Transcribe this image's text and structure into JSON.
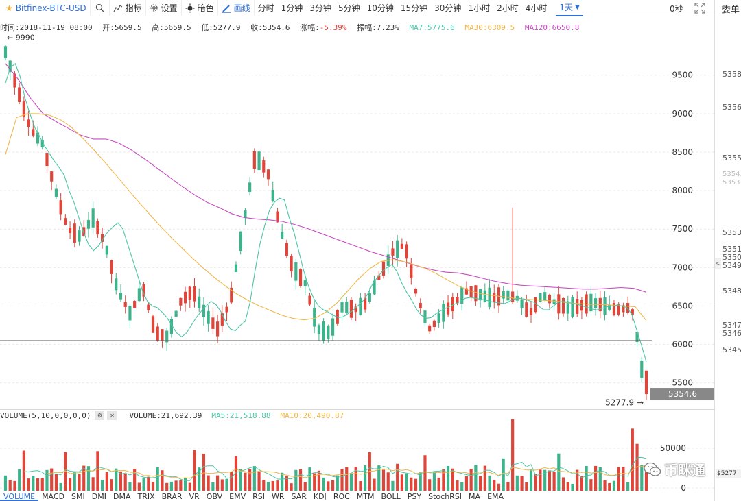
{
  "toolbar": {
    "symbol": "Bitfinex-BTC-USD",
    "indicators_label": "指标",
    "settings_label": "设置",
    "theme_label": "暗色",
    "draw_label": "画线",
    "periods": [
      "分时",
      "1分钟",
      "3分钟",
      "5分钟",
      "10分钟",
      "15分钟",
      "30分钟",
      "1小时",
      "2小时",
      "4小时"
    ],
    "active_period": "1天",
    "countdown": "0秒"
  },
  "info": {
    "time_label": "时间:2018-11-19 08:00",
    "open_label": "开:5659.5",
    "high_label": "高:5659.5",
    "low_label": "低:5277.9",
    "close_label": "收:5354.6",
    "change_label": "涨幅:",
    "change_value": "-5.39%",
    "amplitude_label": "振幅:7.23%",
    "ma7_label": "MA7:5775.6",
    "ma30_label": "MA30:6309.5",
    "ma120_label": "MA120:6650.8"
  },
  "volume_legend": {
    "title": "VOLUME(5,10,0,0,0,0)",
    "volume": "VOLUME:21,692.39",
    "ma5": "MA5:21,518.88",
    "ma10": "MA10:20,490.87"
  },
  "indicator_tabs": [
    "VOLUME",
    "MACD",
    "SMI",
    "DMI",
    "DMA",
    "TRIX",
    "BRAR",
    "VR",
    "OBV",
    "EMV",
    "RSI",
    "WR",
    "SAR",
    "KDJ",
    "ROC",
    "MTM",
    "BOLL",
    "PSY",
    "StochRSI",
    "MA",
    "EMA"
  ],
  "active_indicator": "VOLUME",
  "sidebar": {
    "title": "委单",
    "prices": [
      "5358.",
      "5356.",
      "5355.",
      "5354.",
      "5353.",
      "5353.",
      "5351.",
      "5350.",
      "5349.",
      "5348.",
      "5347.",
      "5346.",
      "5345."
    ],
    "last_price": "$5277",
    "arrow": "<"
  },
  "watermark": "币眯通",
  "colors": {
    "up": "#e0453a",
    "down": "#3cb38a",
    "ma7": "#4cc4a6",
    "ma30": "#f0b64a",
    "ma120": "#c84cc0",
    "accent": "#2e6fd8"
  },
  "chart_data": {
    "type": "candlestick",
    "title": "Bitfinex-BTC-USD",
    "period": "1天",
    "y_ticks": [
      5500,
      6000,
      6500,
      7000,
      7500,
      8000,
      8500,
      9000,
      9500
    ],
    "ylim": [
      5150,
      10050
    ],
    "max_label": "9990",
    "min_label": "5277.9",
    "last_close": "5354.6",
    "horizontal_line": 6050,
    "last_candle": {
      "time": "2018-11-19 08:00",
      "open": 5659.5,
      "high": 5659.5,
      "low": 5277.9,
      "close": 5354.6
    },
    "ma7_polyline": [
      9400,
      9600,
      9650,
      9480,
      9200,
      9000,
      8820,
      8700,
      8580,
      8480,
      8380,
      8300,
      8200,
      8000,
      7850,
      7650,
      7450,
      7300,
      7220,
      7280,
      7380,
      7470,
      7530,
      7580,
      7500,
      7300,
      7100,
      6900,
      6700,
      6560,
      6500,
      6480,
      6420,
      6350,
      6250,
      6150,
      6100,
      6150,
      6250,
      6350,
      6430,
      6500,
      6560,
      6520,
      6430,
      6300,
      6200,
      6180,
      6250,
      6300,
      6550,
      6950,
      7300,
      7550,
      7750,
      7850,
      7900,
      7880,
      7650,
      7450,
      7200,
      6950,
      6750,
      6600,
      6500,
      6450,
      6420,
      6380,
      6350,
      6360,
      6400,
      6440,
      6500,
      6560,
      6650,
      6780,
      6870,
      6950,
      7000,
      7040,
      6950,
      6800,
      6680,
      6580,
      6460,
      6380,
      6340,
      6350,
      6400,
      6440,
      6470,
      6500,
      6530,
      6560,
      6600,
      6610,
      6600,
      6590,
      6580,
      6560,
      6550,
      6540,
      6530,
      6560,
      6590,
      6600,
      6590,
      6570,
      6550,
      6500,
      6450,
      6450,
      6500,
      6550,
      6560,
      6550,
      6530,
      6520,
      6500,
      6480,
      6460,
      6450,
      6470,
      6490,
      6500,
      6510,
      6500,
      6480,
      6400,
      6200,
      5990,
      5775
    ],
    "ma30_polyline": [
      8470,
      8950,
      9000,
      9000,
      8980,
      8920,
      8820,
      8680,
      8530,
      8370,
      8200,
      8030,
      7860,
      7700,
      7540,
      7390,
      7250,
      7110,
      6980,
      6860,
      6750,
      6650,
      6570,
      6500,
      6440,
      6380,
      6340,
      6320,
      6340,
      6420,
      6540,
      6700,
      6860,
      6990,
      7080,
      7100,
      7080,
      7040,
      6990,
      6920,
      6840,
      6760,
      6700,
      6660,
      6640,
      6620,
      6600,
      6590,
      6580,
      6570,
      6560,
      6540,
      6530,
      6520,
      6520,
      6510,
      6500,
      6490,
      6310
    ],
    "ma120_polyline": [
      9650,
      9450,
      9200,
      9000,
      8900,
      8810,
      8720,
      8670,
      8670,
      8620,
      8530,
      8420,
      8300,
      8180,
      8060,
      7950,
      7850,
      7780,
      7700,
      7650,
      7630,
      7620,
      7600,
      7560,
      7510,
      7450,
      7390,
      7330,
      7270,
      7210,
      7160,
      7110,
      7060,
      7010,
      6970,
      6940,
      6930,
      6900,
      6860,
      6820,
      6790,
      6770,
      6760,
      6750,
      6740,
      6730,
      6720,
      6720,
      6730,
      6740,
      6730,
      6680
    ],
    "volume": {
      "y_ticks": [
        0,
        50000
      ],
      "ylim": [
        0,
        95000
      ],
      "last_volume": 21692.39,
      "ma5": 21518.88,
      "ma10": 20490.87
    }
  }
}
